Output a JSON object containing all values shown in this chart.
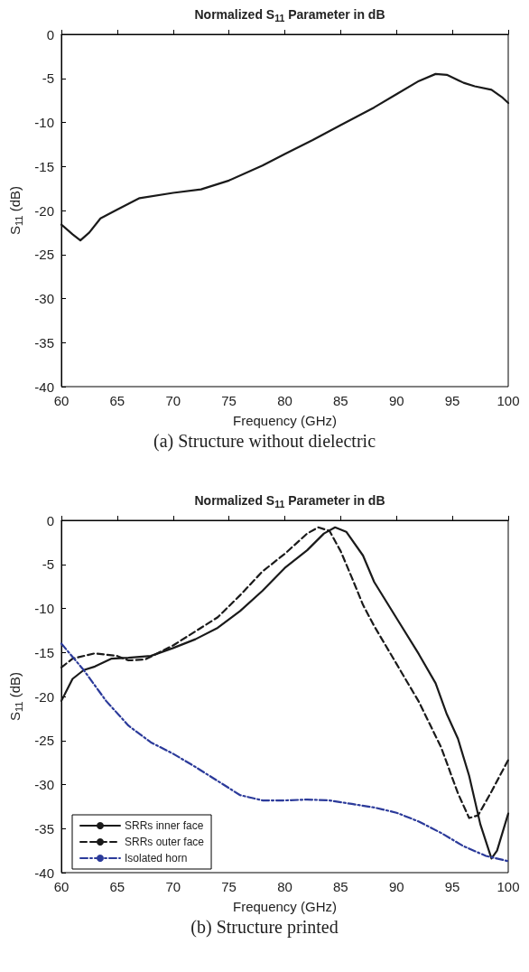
{
  "chart_data": [
    {
      "type": "line",
      "title": "Normalized S$_{11}$ Parameter in dB",
      "xlabel": "Frequency (GHz)",
      "ylabel": "S$_{11}$ (dB)",
      "annotations": [
        "(a) Structure without dielectric"
      ],
      "xlim": [
        60,
        100
      ],
      "ylim": [
        -40,
        0
      ],
      "xticks": [
        60,
        65,
        70,
        75,
        80,
        85,
        90,
        95,
        100
      ],
      "yticks": [
        -40,
        -35,
        -30,
        -25,
        -20,
        -15,
        -10,
        -5,
        0
      ],
      "grid": false,
      "legend": false,
      "marker": "none",
      "series": [
        {
          "color": "#1a1a1a",
          "line_style": "solid",
          "x": [
            60,
            61,
            61.7,
            62.5,
            63.5,
            65,
            67,
            70,
            72.5,
            75,
            78,
            80,
            82.5,
            85,
            88,
            90,
            92,
            93.5,
            94.5,
            96,
            97,
            98.5,
            99.5,
            100
          ],
          "values": [
            -21.6,
            -22.7,
            -23.4,
            -22.5,
            -20.9,
            -19.9,
            -18.6,
            -18,
            -17.6,
            -16.6,
            -14.9,
            -13.6,
            -12,
            -10.3,
            -8.3,
            -6.8,
            -5.3,
            -4.5,
            -4.6,
            -5.5,
            -5.9,
            -6.3,
            -7.2,
            -7.8
          ]
        }
      ]
    },
    {
      "type": "line",
      "title": "Normalized S$_{11}$ Parameter in dB",
      "xlabel": "Frequency (GHz)",
      "ylabel": "S$_{11}$ (dB)",
      "annotations": [
        "(b) Structure printed"
      ],
      "xlim": [
        60,
        100
      ],
      "ylim": [
        -40,
        0
      ],
      "xticks": [
        60,
        65,
        70,
        75,
        80,
        85,
        90,
        95,
        100
      ],
      "yticks": [
        -40,
        -35,
        -30,
        -25,
        -20,
        -15,
        -10,
        -5,
        0
      ],
      "grid": false,
      "legend": "bottom left",
      "marker": "none",
      "series": [
        {
          "name": "SRRs inner face",
          "color": "#1a1a1a",
          "line_style": "solid",
          "x": [
            60,
            61,
            62,
            63,
            64.5,
            66,
            68,
            70,
            72,
            74,
            76,
            78,
            80,
            82,
            83.5,
            84.5,
            85.5,
            87,
            88,
            90,
            92,
            93.5,
            94.5,
            95.5,
            96.5,
            97.5,
            98.5,
            99,
            100
          ],
          "values": [
            -20.5,
            -18,
            -17,
            -16.6,
            -15.7,
            -15.6,
            -15.4,
            -14.5,
            -13.5,
            -12.2,
            -10.3,
            -8,
            -5.4,
            -3.4,
            -1.5,
            -0.8,
            -1.3,
            -4,
            -7,
            -11.1,
            -15.2,
            -18.5,
            -22,
            -24.8,
            -29,
            -34.5,
            -38.4,
            -37.5,
            -33.3
          ]
        },
        {
          "name": "SRRs outer face",
          "color": "#1a1a1a",
          "line_style": "dashed",
          "x": [
            60,
            61,
            63,
            65,
            66,
            67.5,
            70,
            72,
            74,
            76,
            78,
            80,
            82,
            83,
            84,
            85,
            86,
            87,
            88,
            90,
            92,
            94,
            95.5,
            96.5,
            97.3,
            98.5,
            100
          ],
          "values": [
            -16.7,
            -15.7,
            -15.1,
            -15.4,
            -15.9,
            -15.8,
            -14.2,
            -12.6,
            -11,
            -8.5,
            -5.8,
            -3.8,
            -1.5,
            -0.8,
            -1.2,
            -3.5,
            -6.5,
            -9.6,
            -12,
            -16.3,
            -20.6,
            -25.8,
            -31,
            -33.8,
            -33.5,
            -30.8,
            -27.2
          ]
        },
        {
          "name": "Isolated horn",
          "color": "#2b3a9a",
          "line_style": "dashdot",
          "x": [
            60,
            62,
            64,
            66,
            68,
            70,
            72,
            74,
            76,
            78,
            80,
            82,
            84,
            86,
            88,
            90,
            92,
            94,
            96,
            98,
            100
          ],
          "values": [
            -14,
            -17,
            -20.5,
            -23.3,
            -25.2,
            -26.5,
            -28,
            -29.6,
            -31.2,
            -31.8,
            -31.8,
            -31.7,
            -31.8,
            -32.2,
            -32.6,
            -33.2,
            -34.2,
            -35.5,
            -37,
            -38.1,
            -38.7
          ]
        }
      ]
    }
  ]
}
